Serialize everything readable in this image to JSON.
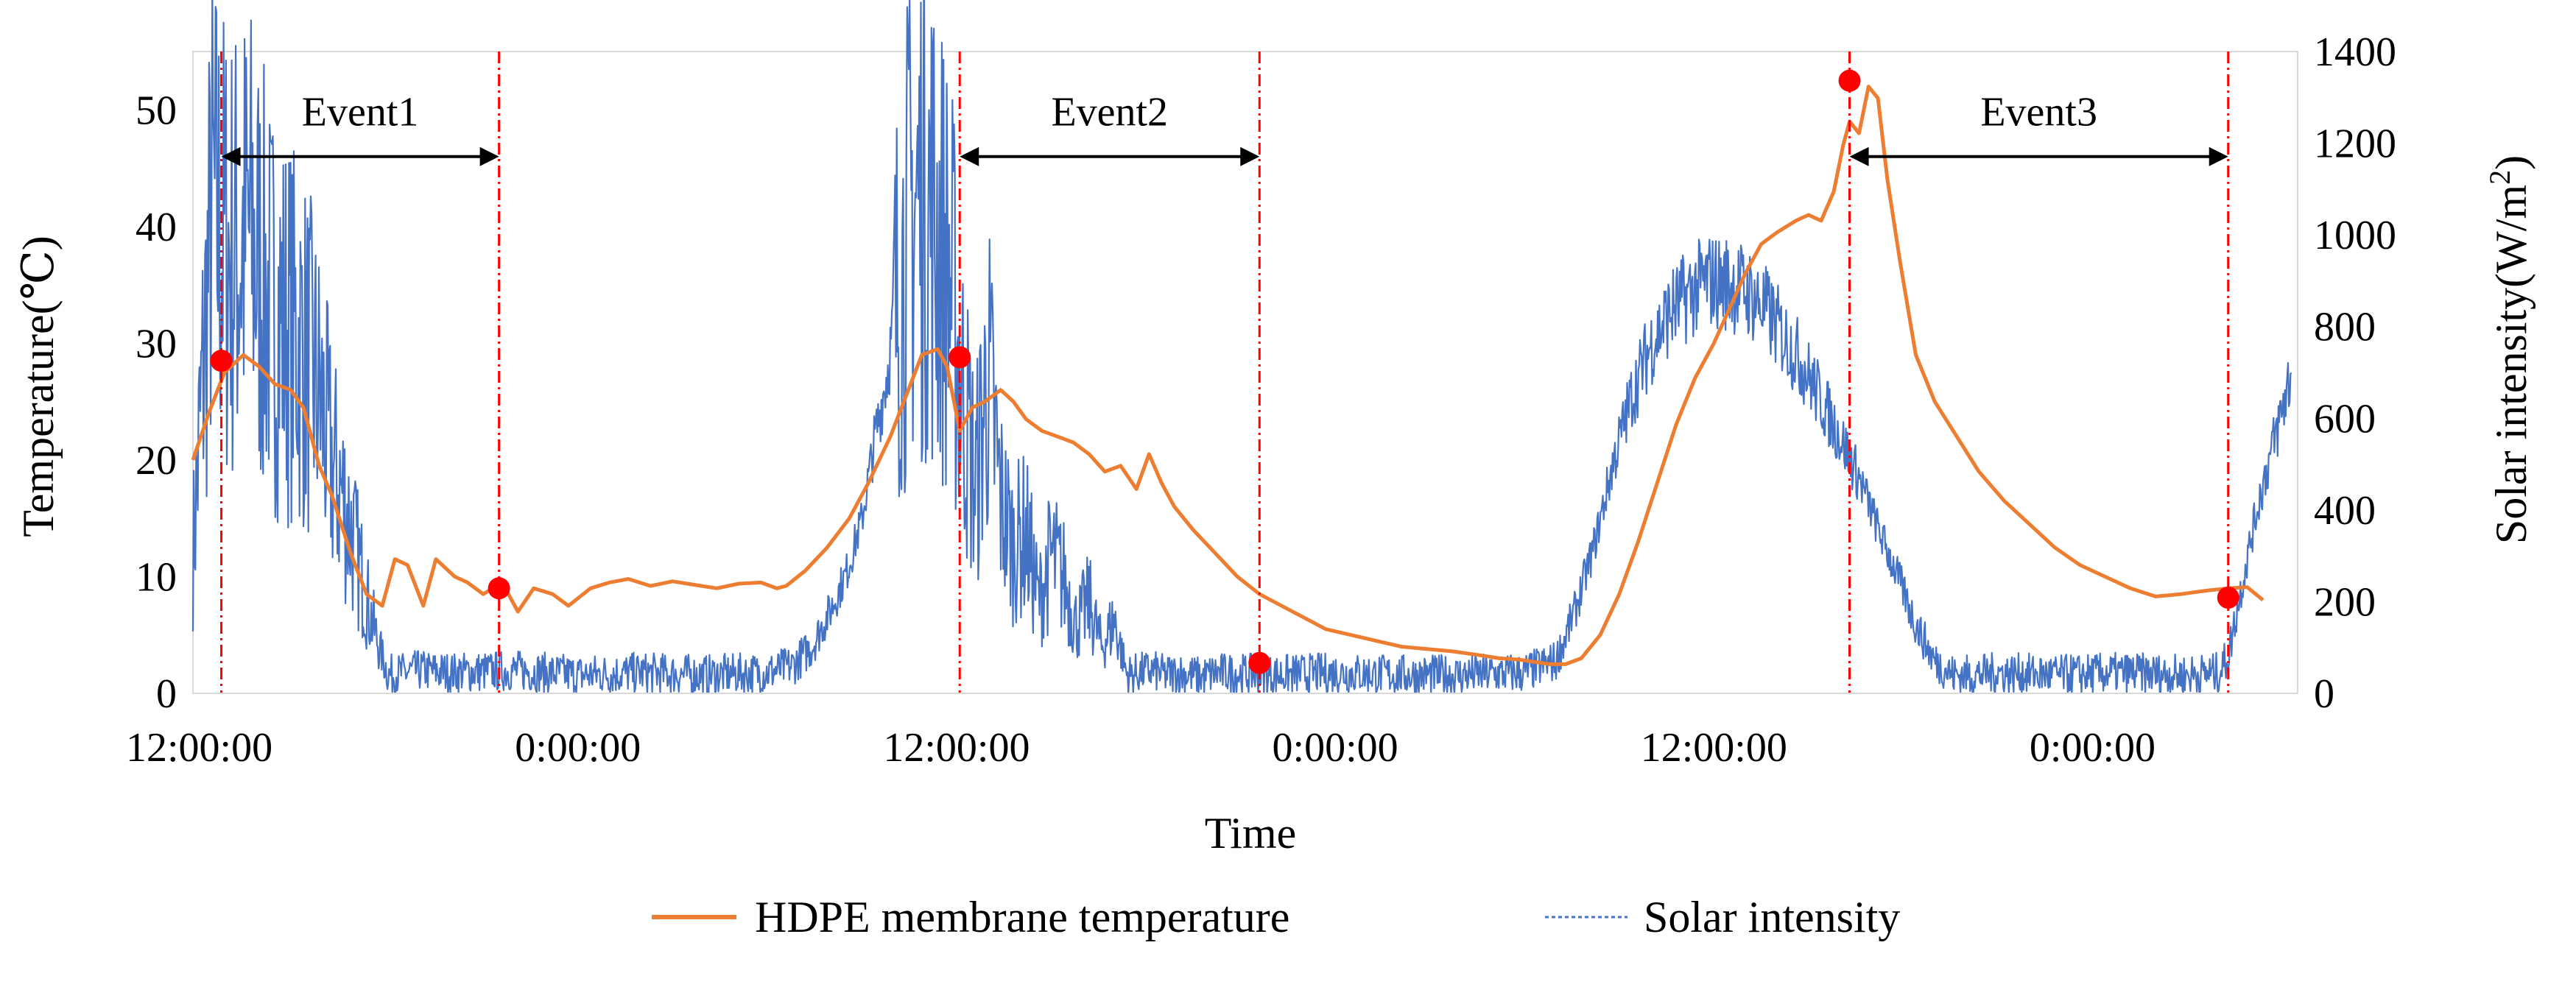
{
  "chart_data": {
    "type": "line",
    "title": "",
    "xlabel": "Time",
    "ylabel": "Temperature(℃)",
    "y2label_main": "Solar intensity(W/m",
    "y2label_sup": "2",
    "y2label_end": ")",
    "x_unit": "hours from first 12:00:00",
    "xlim": [
      -0.2,
      66.5
    ],
    "ylim": [
      0,
      55
    ],
    "y2lim": [
      0,
      1400
    ],
    "yticks": [
      0,
      10,
      20,
      30,
      40,
      50
    ],
    "y2ticks": [
      0,
      200,
      400,
      600,
      800,
      1000,
      1200,
      1400
    ],
    "xticks": [
      {
        "pos": 0,
        "label": "12:00:00"
      },
      {
        "pos": 12,
        "label": "0:00:00"
      },
      {
        "pos": 24,
        "label": "12:00:00"
      },
      {
        "pos": 36,
        "label": "0:00:00"
      },
      {
        "pos": 48,
        "label": "12:00:00"
      },
      {
        "pos": 60,
        "label": "0:00:00"
      }
    ],
    "series": [
      {
        "name": "HDPE membrane temperature",
        "axis": "left",
        "color": "#ED7D31",
        "x": [
          -0.2,
          0.3,
          0.8,
          1.4,
          1.9,
          2.4,
          2.9,
          3.3,
          3.8,
          4.2,
          4.8,
          5.3,
          5.8,
          6.2,
          6.6,
          7.1,
          7.5,
          8.1,
          8.5,
          9.0,
          9.6,
          10.1,
          10.6,
          11.2,
          11.7,
          12.4,
          13.0,
          13.6,
          14.3,
          15.0,
          15.7,
          16.4,
          17.1,
          17.8,
          18.3,
          18.6,
          19.2,
          19.9,
          20.6,
          21.2,
          21.9,
          22.4,
          22.9,
          23.4,
          23.7,
          24.1,
          24.5,
          24.9,
          25.4,
          25.8,
          26.2,
          26.7,
          27.2,
          27.7,
          28.2,
          28.7,
          29.2,
          29.7,
          30.1,
          30.5,
          30.9,
          31.5,
          32.2,
          32.9,
          33.6,
          34.3,
          35.0,
          35.7,
          36.5,
          37.3,
          38.1,
          38.9,
          39.7,
          40.5,
          41.2,
          41.8,
          42.3,
          42.8,
          43.3,
          43.8,
          44.4,
          45.0,
          45.6,
          46.2,
          46.8,
          47.4,
          48.0,
          48.5,
          49.0,
          49.5,
          50.0,
          50.6,
          51.0,
          51.4,
          51.8,
          52.1,
          52.3,
          52.6,
          52.9,
          53.2,
          53.5,
          53.9,
          54.4,
          55.0,
          55.7,
          56.4,
          57.2,
          58.0,
          58.8,
          59.6,
          60.4,
          61.2,
          62.0,
          62.8,
          63.6,
          64.3,
          64.9,
          65.4
        ],
        "values": [
          20.0,
          24.0,
          27.5,
          29.0,
          28.0,
          26.5,
          26.0,
          24.5,
          19.5,
          17.0,
          12.0,
          8.5,
          7.5,
          11.5,
          11.0,
          7.5,
          11.5,
          10.0,
          9.5,
          8.5,
          9.5,
          7.0,
          9.0,
          8.5,
          7.5,
          9.0,
          9.5,
          9.8,
          9.2,
          9.6,
          9.3,
          9.0,
          9.4,
          9.5,
          9.0,
          9.2,
          10.5,
          12.5,
          15.0,
          18.0,
          22.0,
          25.5,
          29.0,
          29.5,
          28.0,
          22.5,
          24.5,
          25.0,
          26.0,
          25.0,
          23.5,
          22.5,
          22.0,
          21.5,
          20.5,
          19.0,
          19.5,
          17.5,
          20.5,
          18.0,
          16.0,
          14.0,
          12.0,
          10.0,
          8.5,
          7.5,
          6.5,
          5.5,
          5.0,
          4.5,
          4.0,
          3.8,
          3.6,
          3.3,
          3.0,
          2.9,
          2.7,
          2.5,
          2.5,
          3.0,
          5.0,
          8.5,
          13.0,
          18.0,
          23.0,
          27.0,
          30.0,
          33.0,
          36.0,
          38.5,
          39.5,
          40.5,
          41.0,
          40.5,
          43.0,
          47.0,
          49.0,
          48.0,
          52.0,
          51.0,
          44.0,
          37.0,
          29.0,
          25.0,
          22.0,
          19.0,
          16.5,
          14.5,
          12.5,
          11.0,
          10.0,
          9.0,
          8.3,
          8.5,
          8.8,
          9.0,
          9.1,
          8.0
        ],
        "width_note": "solid"
      },
      {
        "name": "Solar intensity",
        "axis": "right",
        "color": "#4472C4",
        "x": [
          -0.2,
          0.4,
          1.0,
          1.6,
          2.2,
          2.8,
          3.3,
          3.8,
          4.2,
          4.6,
          5.0,
          5.4,
          5.7,
          6.0,
          7.0,
          8.0,
          10.0,
          12.0,
          14.0,
          16.0,
          18.0,
          18.8,
          19.4,
          20.0,
          20.5,
          21.0,
          21.4,
          21.8,
          22.2,
          22.6,
          23.0,
          23.4,
          23.8,
          24.2,
          24.6,
          25.0,
          25.4,
          25.8,
          26.2,
          26.6,
          27.0,
          27.4,
          27.8,
          28.2,
          28.6,
          29.0,
          29.4,
          29.8,
          30.2,
          30.6,
          31.0,
          31.4,
          31.8,
          32.2,
          34.0,
          36.0,
          38.0,
          40.0,
          42.0,
          43.0,
          43.6,
          44.2,
          44.8,
          45.4,
          46.0,
          46.6,
          47.2,
          47.8,
          48.4,
          49.0,
          49.6,
          50.2,
          50.8,
          51.4,
          52.0,
          52.6,
          53.2,
          53.8,
          54.4,
          55.0,
          55.6,
          56.2,
          57.0,
          59.0,
          61.0,
          63.0,
          64.0,
          64.3,
          64.8,
          65.3,
          65.8,
          66.3
        ],
        "values": [
          300,
          1050,
          950,
          1000,
          850,
          800,
          750,
          650,
          500,
          420,
          300,
          180,
          100,
          40,
          50,
          45,
          50,
          40,
          45,
          40,
          45,
          60,
          100,
          180,
          260,
          380,
          550,
          700,
          900,
          1050,
          1100,
          1000,
          900,
          650,
          450,
          700,
          420,
          320,
          350,
          200,
          300,
          250,
          150,
          200,
          100,
          160,
          40,
          45,
          50,
          40,
          45,
          40,
          35,
          45,
          40,
          45,
          40,
          40,
          45,
          70,
          180,
          320,
          500,
          650,
          760,
          830,
          870,
          900,
          895,
          880,
          840,
          780,
          720,
          640,
          560,
          470,
          360,
          260,
          150,
          70,
          40,
          40,
          45,
          40,
          45,
          40,
          45,
          80,
          260,
          430,
          560,
          700
        ],
        "width_note": "dotted"
      }
    ],
    "event_markers": [
      {
        "name": "Event1",
        "start": 0.7,
        "end": 9.5
      },
      {
        "name": "Event2",
        "start": 24.1,
        "end": 33.6
      },
      {
        "name": "Event3",
        "start": 52.3,
        "end": 64.3
      }
    ],
    "highlight_points": [
      {
        "x": 0.7,
        "y": 28.5
      },
      {
        "x": 9.5,
        "y": 9.0
      },
      {
        "x": 24.1,
        "y": 28.8
      },
      {
        "x": 33.6,
        "y": 2.6
      },
      {
        "x": 52.3,
        "y": 52.5
      },
      {
        "x": 64.3,
        "y": 8.2
      }
    ],
    "legend": {
      "placement": "bottom-center",
      "entries": [
        {
          "label": "HDPE membrane temperature",
          "color": "#ED7D31",
          "style": "solid"
        },
        {
          "label": "Solar intensity",
          "color": "#4472C4",
          "style": "dotted"
        }
      ]
    },
    "marker_color": "#FF0000",
    "guide_color": "#FF0000",
    "axis_color": "#000000",
    "frame_color": "#D9D9D9"
  }
}
